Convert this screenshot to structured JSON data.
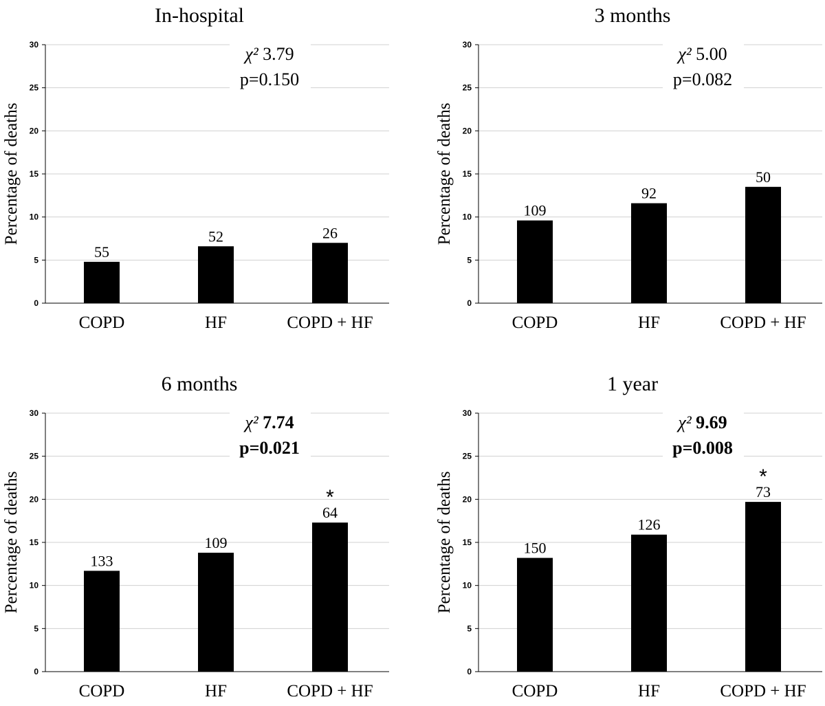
{
  "chart_data": [
    {
      "type": "bar",
      "title": "In-hospital",
      "ylabel": "Percentage of deaths",
      "xlabel": "",
      "ylim": [
        0,
        30
      ],
      "yticks": [
        0,
        5,
        10,
        15,
        20,
        25,
        30
      ],
      "grid": true,
      "categories": [
        "COPD",
        "HF",
        "COPD + HF"
      ],
      "values": [
        4.8,
        6.6,
        7.0
      ],
      "bar_labels": [
        "55",
        "52",
        "26"
      ],
      "stat_line1_symbol": "χ²",
      "stat_line1_value": "3.79",
      "stat_line2": "p=0.150",
      "stat_bold": false,
      "significance_marker": "",
      "significance_index": null
    },
    {
      "type": "bar",
      "title": "3 months",
      "ylabel": "Percentage of deaths",
      "xlabel": "",
      "ylim": [
        0,
        30
      ],
      "yticks": [
        0,
        5,
        10,
        15,
        20,
        25,
        30
      ],
      "grid": true,
      "categories": [
        "COPD",
        "HF",
        "COPD + HF"
      ],
      "values": [
        9.6,
        11.6,
        13.5
      ],
      "bar_labels": [
        "109",
        "92",
        "50"
      ],
      "stat_line1_symbol": "χ²",
      "stat_line1_value": "5.00",
      "stat_line2": "p=0.082",
      "stat_bold": false,
      "significance_marker": "",
      "significance_index": null
    },
    {
      "type": "bar",
      "title": "6 months",
      "ylabel": "Percentage of deaths",
      "xlabel": "",
      "ylim": [
        0,
        30
      ],
      "yticks": [
        0,
        5,
        10,
        15,
        20,
        25,
        30
      ],
      "grid": true,
      "categories": [
        "COPD",
        "HF",
        "COPD + HF"
      ],
      "values": [
        11.7,
        13.8,
        17.3
      ],
      "bar_labels": [
        "133",
        "109",
        "64"
      ],
      "stat_line1_symbol": "χ²",
      "stat_line1_value": "7.74",
      "stat_line2": "p=0.021",
      "stat_bold": true,
      "significance_marker": "*",
      "significance_index": 2
    },
    {
      "type": "bar",
      "title": "1 year",
      "ylabel": "Percentage of deaths",
      "xlabel": "",
      "ylim": [
        0,
        30
      ],
      "yticks": [
        0,
        5,
        10,
        15,
        20,
        25,
        30
      ],
      "grid": true,
      "categories": [
        "COPD",
        "HF",
        "COPD + HF"
      ],
      "values": [
        13.2,
        15.9,
        19.7
      ],
      "bar_labels": [
        "150",
        "126",
        "73"
      ],
      "stat_line1_symbol": "χ²",
      "stat_line1_value": "9.69",
      "stat_line2": "p=0.008",
      "stat_bold": true,
      "significance_marker": "*",
      "significance_index": 2
    }
  ]
}
